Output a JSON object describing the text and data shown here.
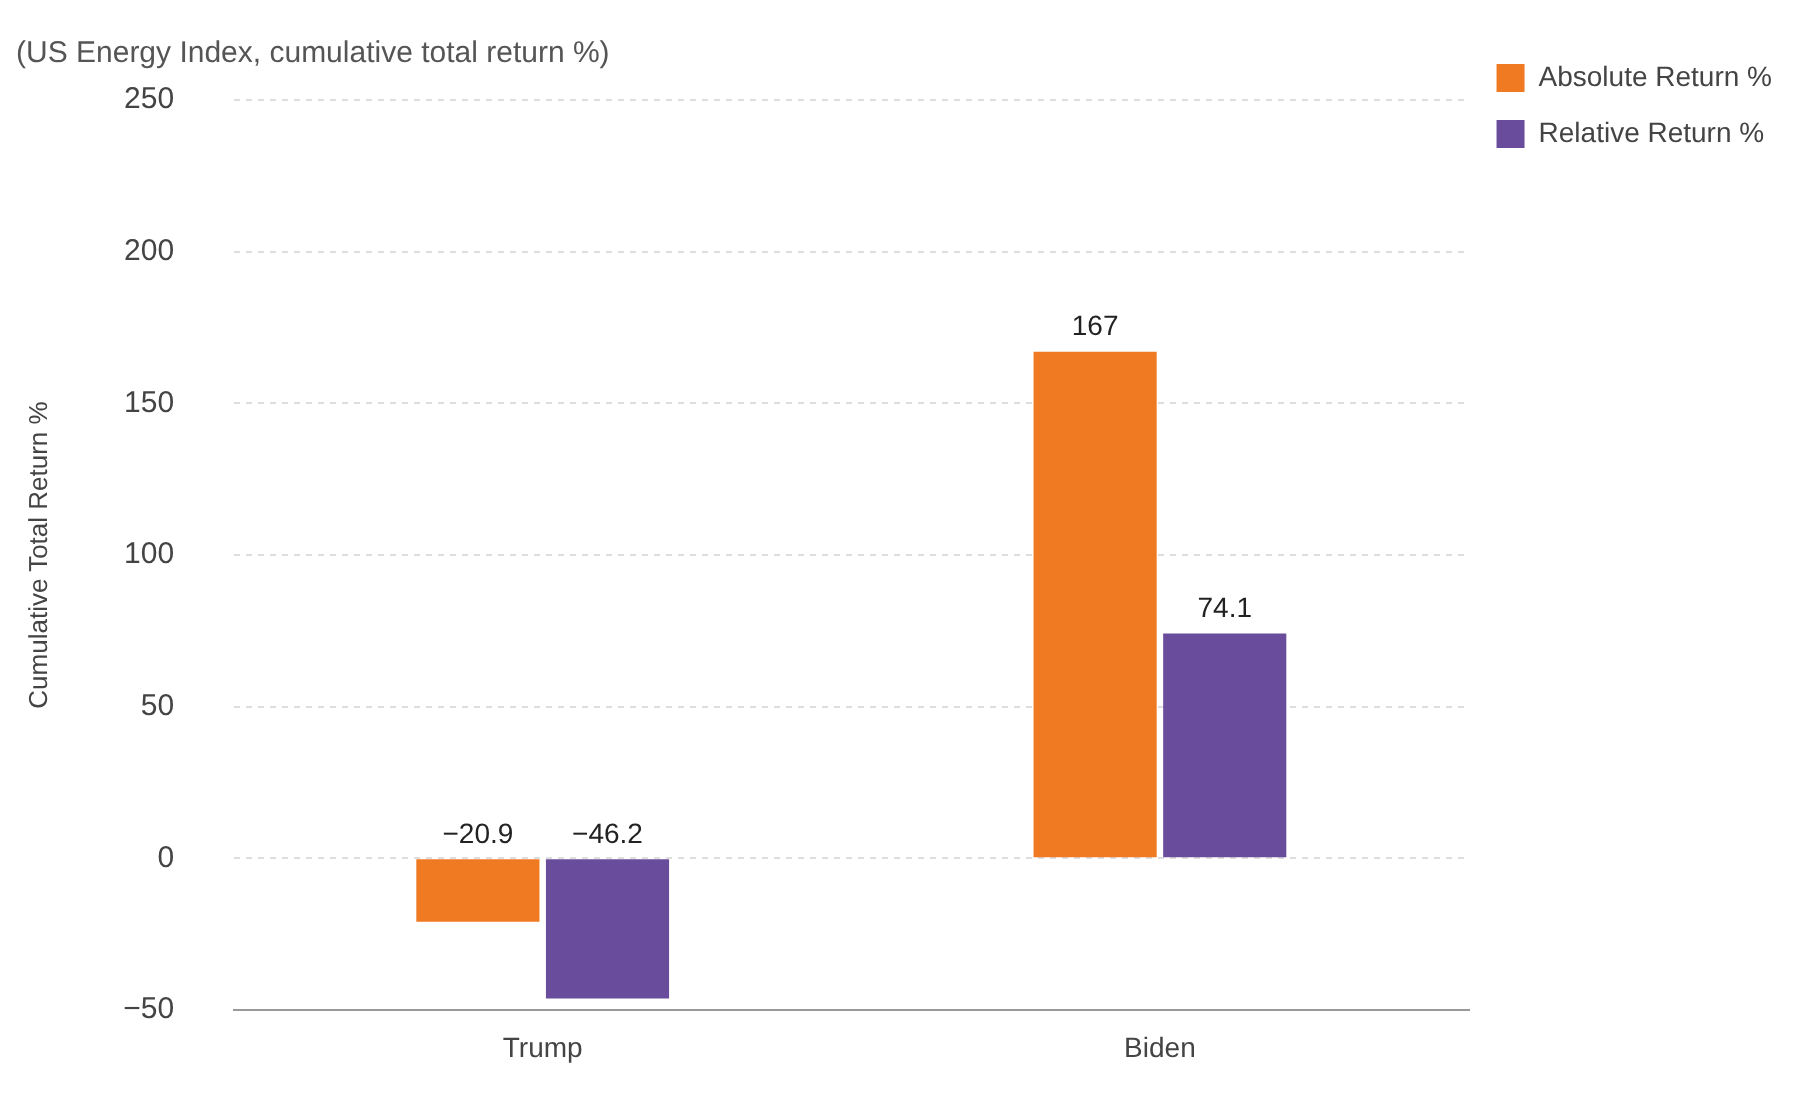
{
  "chart_data": {
    "type": "bar",
    "title": "(US Energy Index, cumulative total return %)",
    "ylabel": "Cumulative Total Return %",
    "categories": [
      "Trump",
      "Biden"
    ],
    "series": [
      {
        "name": "Absolute Return %",
        "color": "#f07a22",
        "values": [
          -20.9,
          167
        ]
      },
      {
        "name": "Relative Return %",
        "color": "#6a4c9c",
        "values": [
          -46.2,
          74.1
        ]
      }
    ],
    "ylim": [
      -50,
      250
    ],
    "yticks": [
      -50,
      0,
      50,
      100,
      150,
      200,
      250
    ],
    "grid": "y",
    "legend": "top right",
    "data_labels": true
  }
}
